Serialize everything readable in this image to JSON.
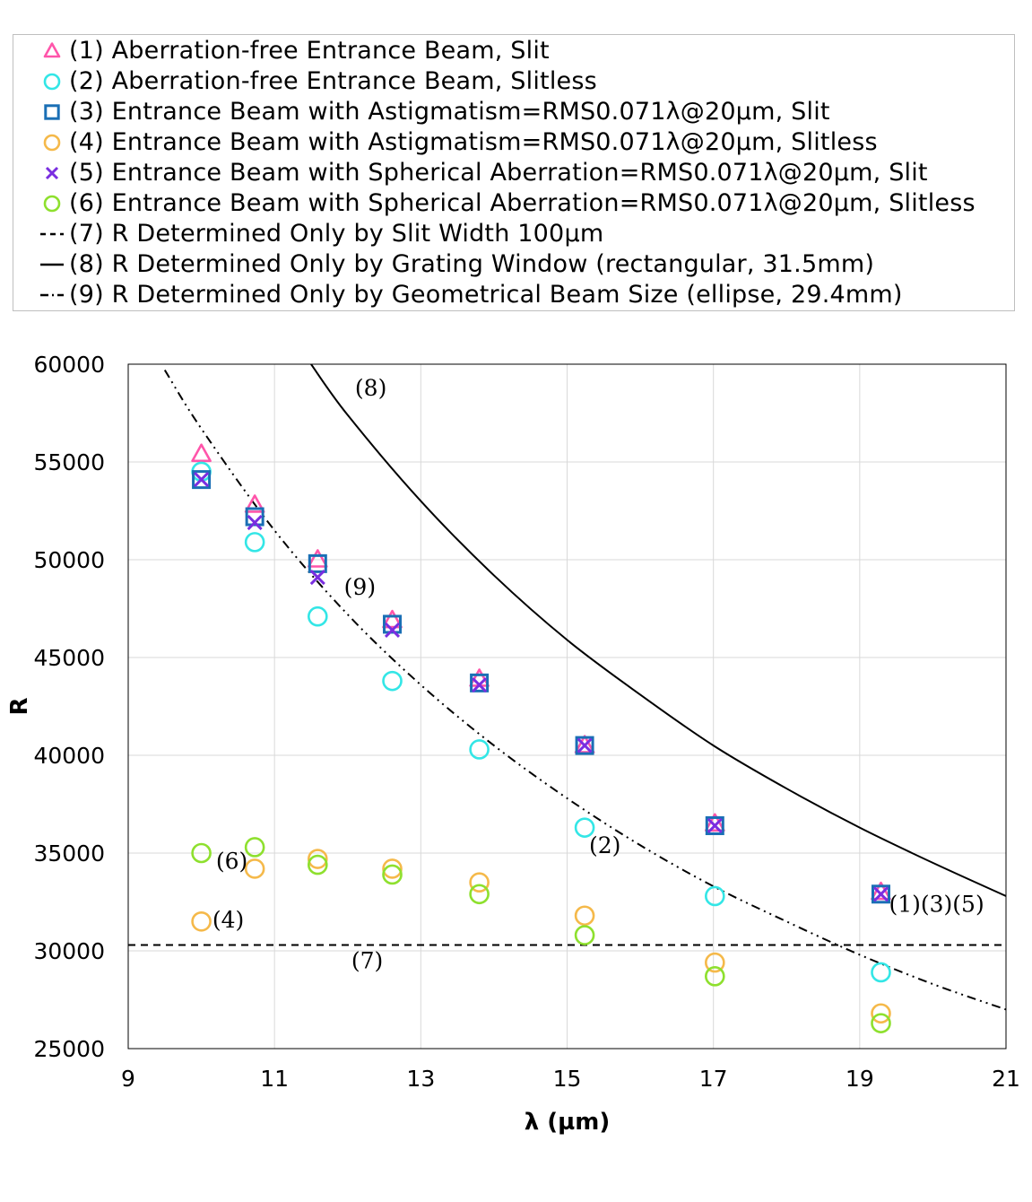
{
  "legend": [
    {
      "symbol": "triangle",
      "color": "#ff55aa",
      "label": "(1) Aberration-free Entrance Beam, Slit"
    },
    {
      "symbol": "circle",
      "color": "#33e6e6",
      "label": "(2) Aberration-free Entrance Beam, Slitless"
    },
    {
      "symbol": "square",
      "color": "#1a6fb5",
      "label": "(3) Entrance Beam with Astigmatism=RMS0.071λ@20µm, Slit"
    },
    {
      "symbol": "circle",
      "color": "#f5b94a",
      "label": "(4) Entrance Beam with Astigmatism=RMS0.071λ@20µm, Slitless"
    },
    {
      "symbol": "cross",
      "color": "#7a2ee0",
      "label": "(5) Entrance Beam with Spherical Aberration=RMS0.071λ@20µm, Slit"
    },
    {
      "symbol": "circle",
      "color": "#8ee02e",
      "label": "(6) Entrance Beam with Spherical Aberration=RMS0.071λ@20µm, Slitless"
    },
    {
      "symbol": "dash",
      "color": "#000000",
      "label": "(7) R Determined Only by Slit Width 100µm"
    },
    {
      "symbol": "solid",
      "color": "#000000",
      "label": "(8) R Determined Only by Grating Window (rectangular, 31.5mm)"
    },
    {
      "symbol": "dashdot",
      "color": "#000000",
      "label": "(9) R Determined Only by Geometrical Beam Size (ellipse, 29.4mm)"
    }
  ],
  "chart_data": {
    "type": "scatter",
    "xlabel": "λ (µm)",
    "ylabel": "R",
    "xlim": [
      9,
      21
    ],
    "ylim": [
      25000,
      60000
    ],
    "xticks": [
      9,
      11,
      13,
      15,
      17,
      19,
      21
    ],
    "yticks": [
      25000,
      30000,
      35000,
      40000,
      45000,
      50000,
      55000,
      60000
    ],
    "grid": true,
    "series": [
      {
        "name": "(1) Aberration-free Entrance Beam, Slit",
        "marker": "triangle",
        "color": "#ff55aa",
        "x": [
          10.0,
          10.73,
          11.59,
          12.61,
          13.8,
          15.24,
          17.02,
          19.29
        ],
        "y": [
          55400,
          52800,
          50000,
          46900,
          43900,
          40500,
          36500,
          33000
        ]
      },
      {
        "name": "(2) Aberration-free Entrance Beam, Slitless",
        "marker": "circle",
        "color": "#33e6e6",
        "x": [
          10.0,
          10.73,
          11.59,
          12.61,
          13.8,
          15.24,
          17.02,
          19.29
        ],
        "y": [
          54500,
          50900,
          47100,
          43800,
          40300,
          36300,
          32800,
          28900
        ]
      },
      {
        "name": "(3) Entrance Beam with Astigmatism=RMS0.071λ@20µm, Slit",
        "marker": "square",
        "color": "#1a6fb5",
        "x": [
          10.0,
          10.73,
          11.59,
          12.61,
          13.8,
          15.24,
          17.02,
          19.29
        ],
        "y": [
          54100,
          52200,
          49800,
          46700,
          43700,
          40500,
          36400,
          32900
        ]
      },
      {
        "name": "(4) Entrance Beam with Astigmatism=RMS0.071λ@20µm, Slitless",
        "marker": "circle",
        "color": "#f5b94a",
        "x": [
          10.0,
          10.73,
          11.59,
          12.61,
          13.8,
          15.24,
          17.02,
          19.29
        ],
        "y": [
          31500,
          34200,
          34700,
          34200,
          33500,
          31800,
          29400,
          26800
        ]
      },
      {
        "name": "(5) Entrance Beam with Spherical Aberration=RMS0.071λ@20µm, Slit",
        "marker": "cross",
        "color": "#7a2ee0",
        "x": [
          10.0,
          10.73,
          11.59,
          12.61,
          13.8,
          15.24,
          17.02,
          19.29
        ],
        "y": [
          54100,
          51900,
          49100,
          46400,
          43600,
          40500,
          36400,
          32900
        ]
      },
      {
        "name": "(6) Entrance Beam with Spherical Aberration=RMS0.071λ@20µm, Slitless",
        "marker": "circle",
        "color": "#8ee02e",
        "x": [
          10.0,
          10.73,
          11.59,
          12.61,
          13.8,
          15.24,
          17.02,
          19.29
        ],
        "y": [
          35000,
          35300,
          34400,
          33900,
          32900,
          30800,
          28700,
          26300
        ]
      }
    ],
    "lines": [
      {
        "name": "(7) R Determined Only by Slit Width 100µm",
        "style": "dash",
        "x": [
          9,
          21
        ],
        "y": [
          30300,
          30300
        ]
      },
      {
        "name": "(8) R Determined Only by Grating Window (rectangular, 31.5mm)",
        "style": "solid",
        "x": [
          11.5,
          12.0,
          13.0,
          14.0,
          15.0,
          16.0,
          17.0,
          18.0,
          19.0,
          20.0,
          21.0
        ],
        "y": [
          60000,
          57400,
          53000,
          49200,
          45900,
          43100,
          40500,
          38300,
          36300,
          34500,
          32800
        ]
      },
      {
        "name": "(9) R Determined Only by Geometrical Beam Size (ellipse, 29.4mm)",
        "style": "dashdot",
        "x": [
          9.5,
          10.0,
          11.0,
          12.0,
          13.0,
          14.0,
          15.0,
          16.0,
          17.0,
          18.0,
          19.0,
          20.0,
          21.0
        ],
        "y": [
          59700,
          56700,
          51500,
          47200,
          43600,
          40500,
          37800,
          35400,
          33300,
          31500,
          29800,
          28300,
          27000
        ]
      }
    ],
    "annotations": [
      {
        "text": "(8)",
        "x": 12.1,
        "y": 58400
      },
      {
        "text": "(9)",
        "x": 11.95,
        "y": 48200
      },
      {
        "text": "(6)",
        "x": 10.2,
        "y": 34200
      },
      {
        "text": "(4)",
        "x": 10.15,
        "y": 31200
      },
      {
        "text": "(2)",
        "x": 15.3,
        "y": 35000
      },
      {
        "text": "(7)",
        "x": 12.05,
        "y": 29100
      },
      {
        "text": "(1)(3)(5)",
        "x": 19.4,
        "y": 32000
      }
    ]
  }
}
